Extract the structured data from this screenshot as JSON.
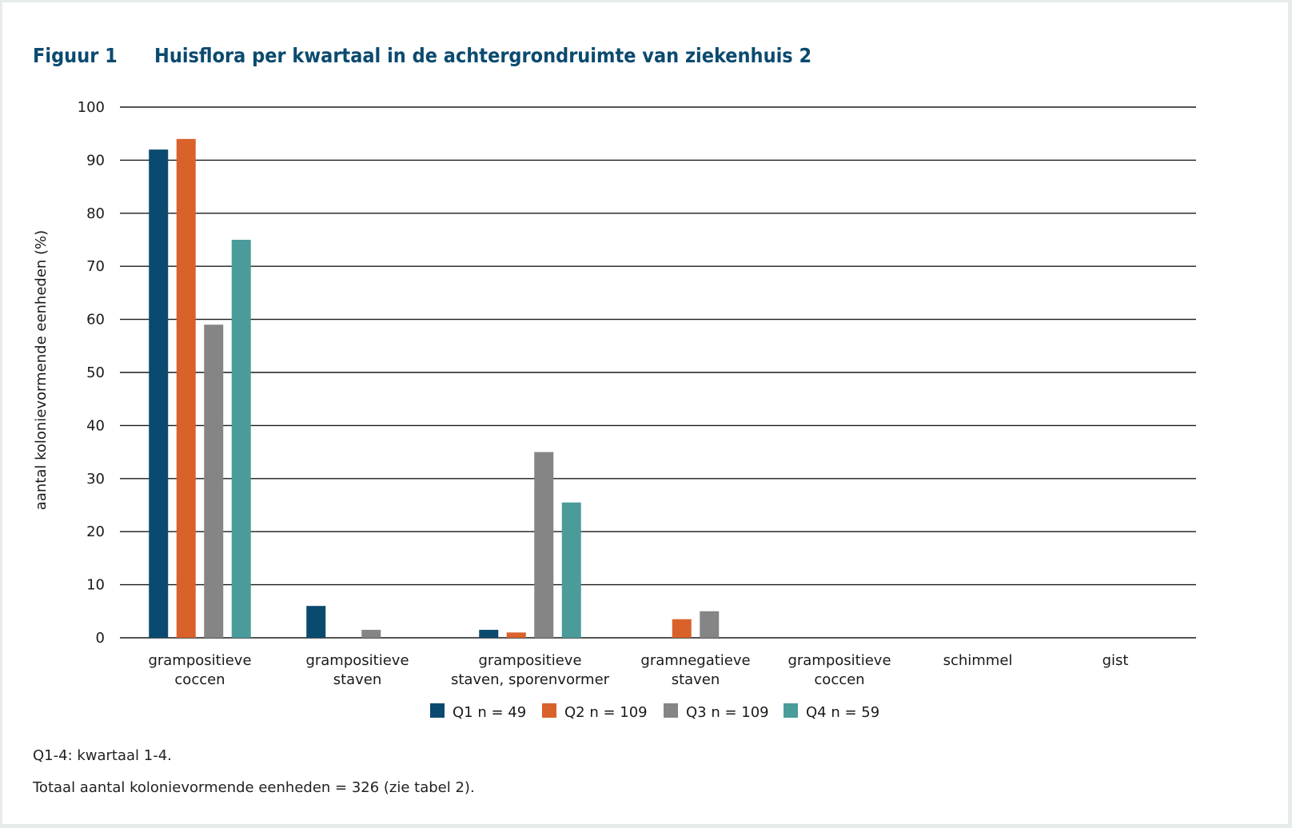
{
  "figure": {
    "label": "Figuur 1",
    "title": "Huisflora per kwartaal in de achtergrondruimte van ziekenhuis 2"
  },
  "notes": [
    "Q1-4: kwartaal 1-4.",
    "Totaal aantal kolonievormende eenheden = 326 (zie tabel 2)."
  ],
  "chart_data": {
    "type": "bar",
    "title": "Huisflora per kwartaal in de achtergrondruimte van ziekenhuis 2",
    "xlabel": "",
    "ylabel": "aantal kolonievormende eenheden (%)",
    "ylim": [
      0,
      100
    ],
    "yticks": [
      0,
      10,
      20,
      30,
      40,
      50,
      60,
      70,
      80,
      90,
      100
    ],
    "grid": true,
    "legend": "bottom-center",
    "categories": [
      [
        "grampositieve",
        "coccen"
      ],
      [
        "grampositieve",
        "staven"
      ],
      [
        "grampositieve",
        "staven, sporenvormer"
      ],
      [
        "gramnegatieve",
        "staven"
      ],
      [
        "grampositieve",
        "coccen"
      ],
      [
        "schimmel"
      ],
      [
        "gist"
      ]
    ],
    "series": [
      {
        "name": "Q1 n = 49",
        "color": "#0b4a6f",
        "values": [
          92,
          6,
          1.5,
          0,
          0,
          0,
          0
        ]
      },
      {
        "name": "Q2 n = 109",
        "color": "#d9622b",
        "values": [
          94,
          0,
          1,
          3.5,
          0,
          0,
          0
        ]
      },
      {
        "name": "Q3 n = 109",
        "color": "#858585",
        "values": [
          59,
          1.5,
          35,
          5,
          0,
          0,
          0
        ]
      },
      {
        "name": "Q4 n = 59",
        "color": "#4a9c9b",
        "values": [
          75,
          0,
          25.5,
          0,
          0,
          0,
          0
        ]
      }
    ]
  }
}
